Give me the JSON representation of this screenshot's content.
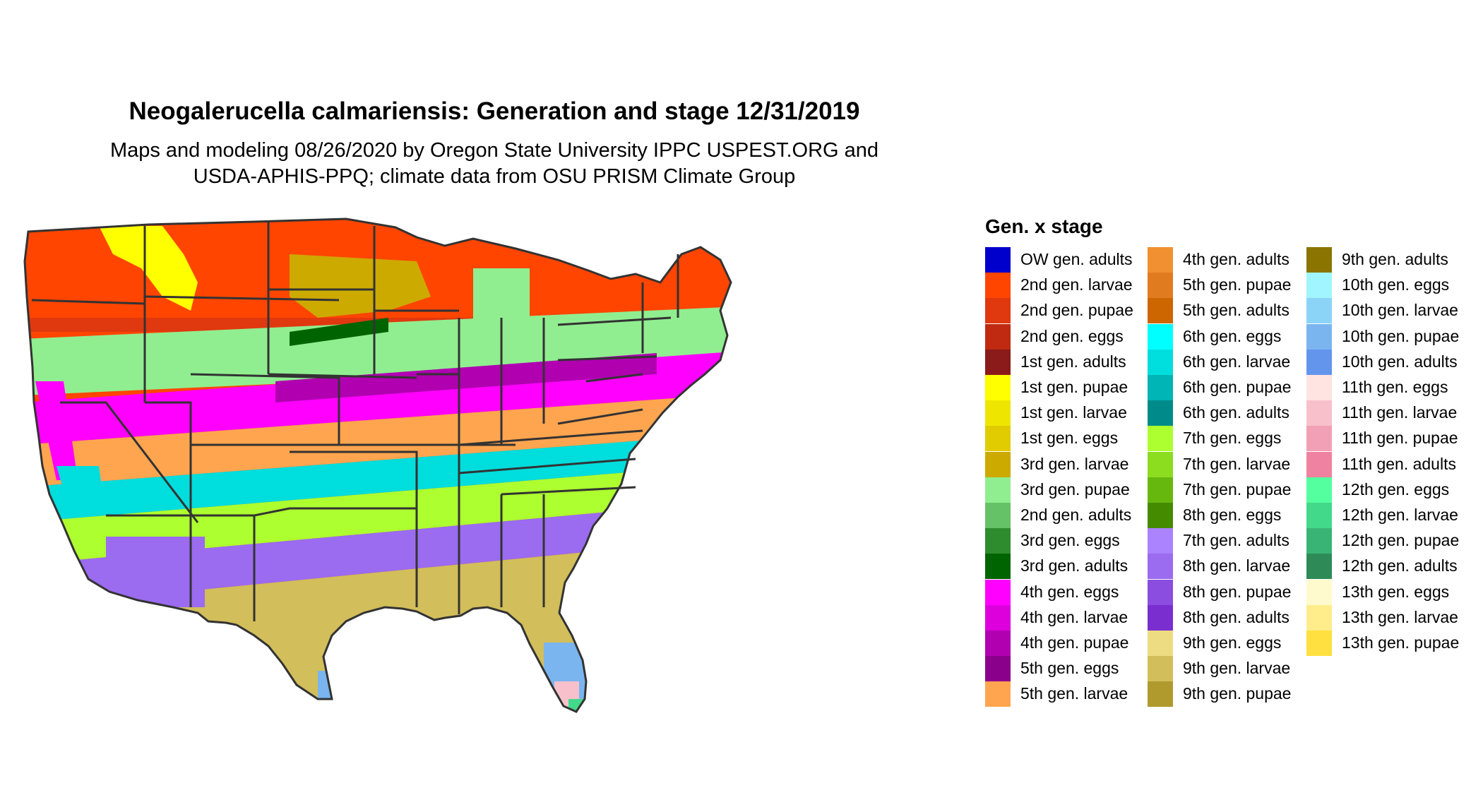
{
  "title": "Neogalerucella calmariensis: Generation and stage 12/31/2019",
  "subtitle_line1": "Maps and modeling 08/26/2020 by Oregon State University IPPC USPEST.ORG and",
  "subtitle_line2": "USDA-APHIS-PPQ; climate data from OSU PRISM Climate Group",
  "legend": {
    "title": "Gen. x stage",
    "items": [
      {
        "label": "OW gen. adults",
        "color": "#0000CD"
      },
      {
        "label": "2nd gen. larvae",
        "color": "#FF4500"
      },
      {
        "label": "2nd gen. pupae",
        "color": "#E0380F"
      },
      {
        "label": "2nd gen. eggs",
        "color": "#C02A10"
      },
      {
        "label": "1st gen. adults",
        "color": "#8B1A1A"
      },
      {
        "label": "1st gen. pupae",
        "color": "#FFFF00"
      },
      {
        "label": "1st gen. larvae",
        "color": "#EEE600"
      },
      {
        "label": "1st gen. eggs",
        "color": "#E0CC00"
      },
      {
        "label": "3rd gen. larvae",
        "color": "#CDAA00"
      },
      {
        "label": "3rd gen. pupae",
        "color": "#90EE90"
      },
      {
        "label": "2nd gen. adults",
        "color": "#66C266"
      },
      {
        "label": "3rd gen. eggs",
        "color": "#2E8B2E"
      },
      {
        "label": "3rd gen. adults",
        "color": "#006400"
      },
      {
        "label": "4th gen. eggs",
        "color": "#FF00FF"
      },
      {
        "label": "4th gen. larvae",
        "color": "#DD00DD"
      },
      {
        "label": "4th gen. pupae",
        "color": "#B000B0"
      },
      {
        "label": "5th gen. eggs",
        "color": "#8B008B"
      },
      {
        "label": "5th gen. larvae",
        "color": "#FFA54F"
      },
      {
        "label": "4th gen. adults",
        "color": "#F09030"
      },
      {
        "label": "5th gen. pupae",
        "color": "#E07B20"
      },
      {
        "label": "5th gen. adults",
        "color": "#CD6600"
      },
      {
        "label": "6th gen. eggs",
        "color": "#00FFFF"
      },
      {
        "label": "6th gen. larvae",
        "color": "#00DDDD"
      },
      {
        "label": "6th gen. pupae",
        "color": "#00B5B5"
      },
      {
        "label": "6th gen. adults",
        "color": "#008B8B"
      },
      {
        "label": "7th gen. eggs",
        "color": "#ADFF2F"
      },
      {
        "label": "7th gen. larvae",
        "color": "#8CDC20"
      },
      {
        "label": "7th gen. pupae",
        "color": "#66B80F"
      },
      {
        "label": "8th gen. eggs",
        "color": "#458B00"
      },
      {
        "label": "7th gen. adults",
        "color": "#AB82FF"
      },
      {
        "label": "8th gen. larvae",
        "color": "#9B6BF0"
      },
      {
        "label": "8th gen. pupae",
        "color": "#8A4DE0"
      },
      {
        "label": "8th gen. adults",
        "color": "#7A2ECF"
      },
      {
        "label": "9th gen. eggs",
        "color": "#EEDC82"
      },
      {
        "label": "9th gen. larvae",
        "color": "#D2BE5A"
      },
      {
        "label": "9th gen. pupae",
        "color": "#B09A2E"
      },
      {
        "label": "9th gen. adults",
        "color": "#8B7500"
      },
      {
        "label": "10th gen. eggs",
        "color": "#A0F5FF"
      },
      {
        "label": "10th gen. larvae",
        "color": "#8CD3F8"
      },
      {
        "label": "10th gen. pupae",
        "color": "#7AB5F0"
      },
      {
        "label": "10th gen. adults",
        "color": "#6495ED"
      },
      {
        "label": "11th gen. eggs",
        "color": "#FFE4E1"
      },
      {
        "label": "11th gen. larvae",
        "color": "#F8C0CB"
      },
      {
        "label": "11th gen. pupae",
        "color": "#F2A0B5"
      },
      {
        "label": "11th gen. adults",
        "color": "#EE82A0"
      },
      {
        "label": "12th gen. eggs",
        "color": "#54FF9F"
      },
      {
        "label": "12th gen. larvae",
        "color": "#43D98A"
      },
      {
        "label": "12th gen. pupae",
        "color": "#3AB475"
      },
      {
        "label": "12th gen. adults",
        "color": "#2E8B57"
      },
      {
        "label": "13th gen. eggs",
        "color": "#FFFACD"
      },
      {
        "label": "13th gen. larvae",
        "color": "#FFEC8B"
      },
      {
        "label": "13th gen. pupae",
        "color": "#FFE040"
      }
    ]
  },
  "map": {
    "background": "#FFFFFF",
    "border_color": "#333333",
    "region_colors": {
      "north": "#FF4500",
      "north_mid": "#E0380F",
      "north_yellow": "#FFFF00",
      "plains_olive": "#CDAA00",
      "green_band": "#90EE90",
      "dark_green": "#006400",
      "magenta": "#FF00FF",
      "purple": "#B000B0",
      "orange": "#FFA54F",
      "cyan": "#00DDDD",
      "lime": "#ADFF2F",
      "violet": "#9B6BF0",
      "tan": "#D2BE5A",
      "blue": "#7AB5F0",
      "pink": "#F8C0CB",
      "seagreen": "#43D98A"
    }
  }
}
